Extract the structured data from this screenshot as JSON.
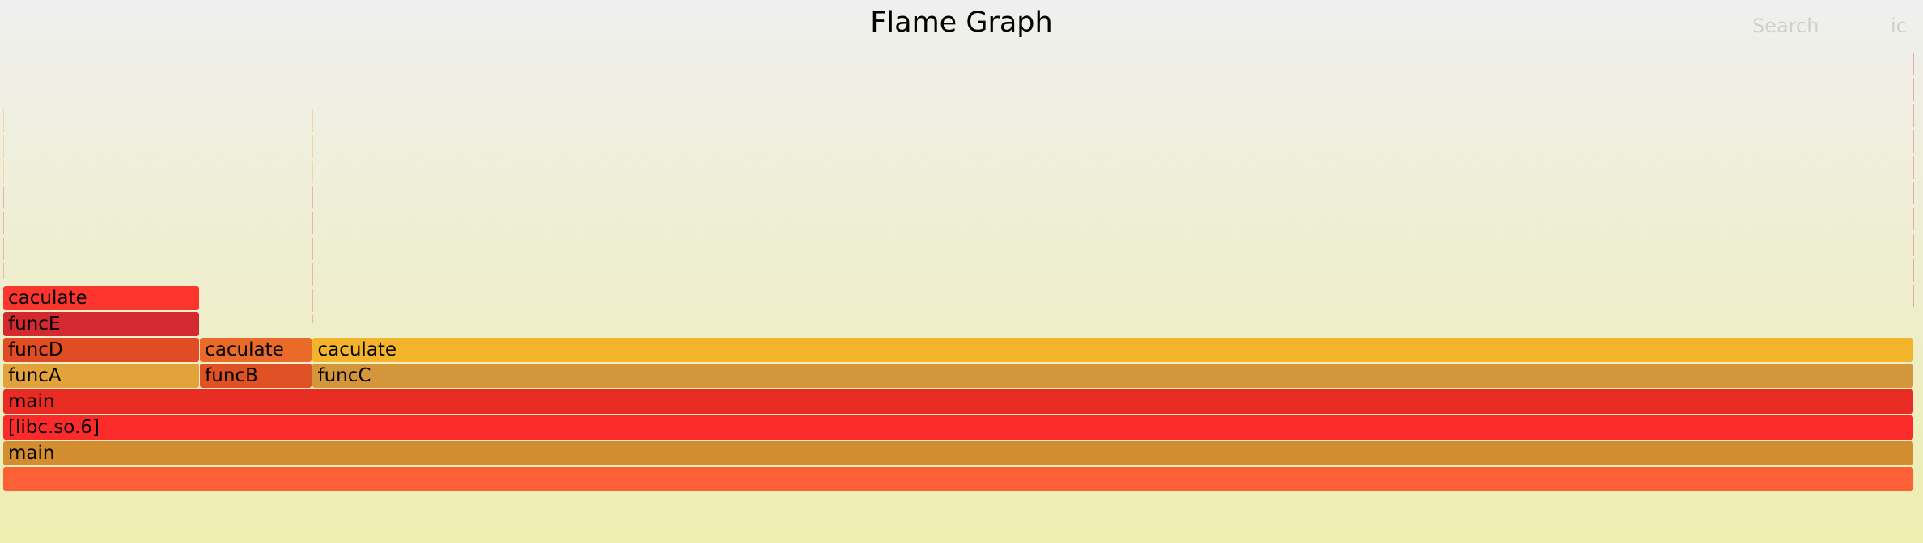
{
  "title": "Flame Graph",
  "search_label": "Search",
  "ic_label": "ic",
  "chart_data": {
    "type": "flame",
    "total_samples": 1000,
    "frames": [
      {
        "label": "",
        "depth": 0,
        "start": 0,
        "width": 1000,
        "color": "#fd5f36"
      },
      {
        "label": "main",
        "depth": 1,
        "start": 0,
        "width": 1000,
        "color": "#d28d30"
      },
      {
        "label": "[libc.so.6]",
        "depth": 2,
        "start": 0,
        "width": 1000,
        "color": "#fb2b2b"
      },
      {
        "label": "main",
        "depth": 3,
        "start": 0,
        "width": 1000,
        "color": "#e82c23"
      },
      {
        "label": "funcA",
        "depth": 4,
        "start": 0,
        "width": 103,
        "color": "#e2a33c"
      },
      {
        "label": "funcB",
        "depth": 4,
        "start": 103,
        "width": 59,
        "color": "#de5226"
      },
      {
        "label": "funcC",
        "depth": 4,
        "start": 162,
        "width": 838,
        "color": "#d4963a"
      },
      {
        "label": "funcD",
        "depth": 5,
        "start": 0,
        "width": 103,
        "color": "#e24c24"
      },
      {
        "label": "caculate",
        "depth": 5,
        "start": 103,
        "width": 59,
        "color": "#ea6a2a"
      },
      {
        "label": "caculate",
        "depth": 5,
        "start": 162,
        "width": 838,
        "color": "#f3b42c"
      },
      {
        "label": "funcE",
        "depth": 6,
        "start": 0,
        "width": 103,
        "color": "#d22a30"
      },
      {
        "label": "caculate",
        "depth": 7,
        "start": 0,
        "width": 103,
        "color": "#fd362d"
      }
    ]
  }
}
